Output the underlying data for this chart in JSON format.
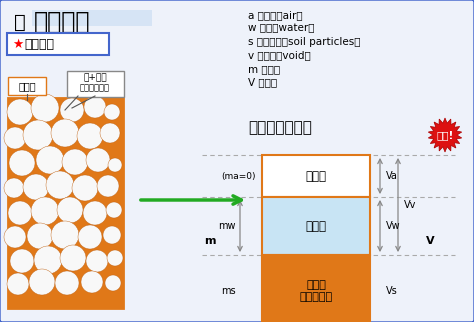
{
  "bg_color": "#eef2fa",
  "border_color": "#4466cc",
  "title": "ポイント",
  "legend_lines": [
    "a ：空気（air）",
    "w ：水（water）",
    "s ：土粒子（soil particles）",
    "v ：間隙（void）",
    "m ：質量",
    "V ：体積"
  ],
  "formula": "間隙＝空気＋水",
  "orange": "#e07818",
  "light_blue": "#c8e4f4",
  "white_fill": "#ffffff",
  "box_border": "#e07818",
  "gas_label": "気体相",
  "liquid_label": "液体相",
  "solid_label": "固体相\n（土粒子）",
  "left_label1": "土粒子",
  "left_label2": "水+空気",
  "left_label3": "（間隙流体）",
  "juyo": "重要!",
  "subtitle": "土の構成",
  "ma_label": "(ma=0)",
  "mw_label": "mw",
  "ms_label": "ms",
  "m_label": "m",
  "Va_label": "Va",
  "Vv_label": "Vv",
  "Vw_label": "Vw",
  "Vs_label": "Vs",
  "V_label": "V"
}
